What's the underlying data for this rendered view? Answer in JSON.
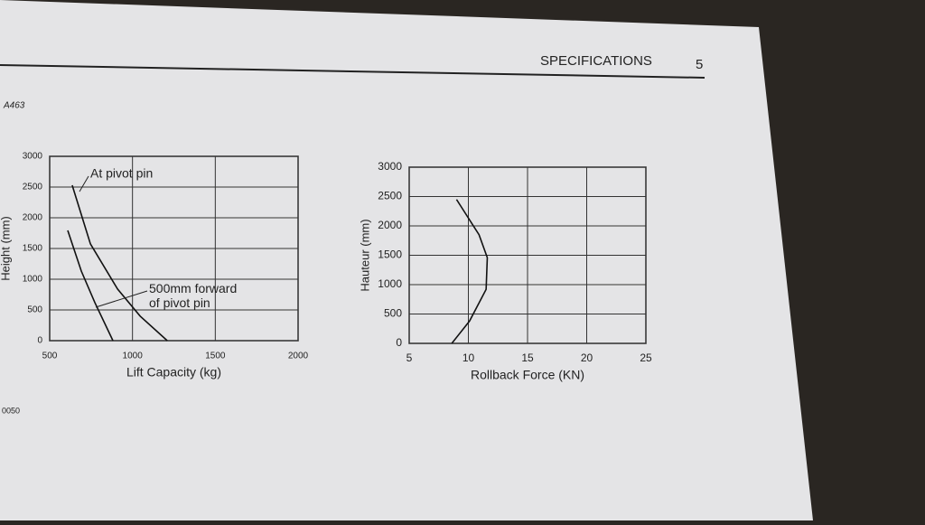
{
  "header": {
    "title": "SPECIFICATIONS",
    "page": "5",
    "code": "A463",
    "footer": "0050"
  },
  "chart_data": [
    {
      "type": "line",
      "x_label": "Lift Capacity (kg)",
      "y_label": "Height (mm)",
      "xlim": [
        500,
        2000
      ],
      "xticks": [
        500,
        1000,
        1500,
        2000
      ],
      "ylim": [
        0,
        3000
      ],
      "yticks": [
        0,
        500,
        1000,
        1500,
        2000,
        2500,
        3000
      ],
      "grid": true,
      "series": [
        {
          "name": "At pivot pin",
          "color": "#111111",
          "x": [
            636,
            746,
            910,
            1046,
            1210
          ],
          "values": [
            2530,
            1574,
            840,
            400,
            0
          ]
        },
        {
          "name": "500mm forward of pivot pin",
          "color": "#111111",
          "x": [
            609,
            691,
            773,
            882
          ],
          "values": [
            1794,
            1132,
            618,
            0
          ]
        }
      ]
    },
    {
      "type": "line",
      "x_label": "Rollback Force (KN)",
      "y_label": "Hauteur (mm)",
      "xlim": [
        5,
        25
      ],
      "xticks": [
        5,
        10,
        15,
        20,
        25
      ],
      "ylim": [
        0,
        3000
      ],
      "yticks": [
        0,
        500,
        1000,
        1500,
        2000,
        2500,
        3000
      ],
      "grid": true,
      "series": [
        {
          "color": "#111111",
          "x": [
            9,
            10.9,
            11.6,
            11.5,
            10.1,
            8.6
          ],
          "values": [
            2450,
            1850,
            1460,
            920,
            380,
            0
          ]
        }
      ]
    }
  ]
}
